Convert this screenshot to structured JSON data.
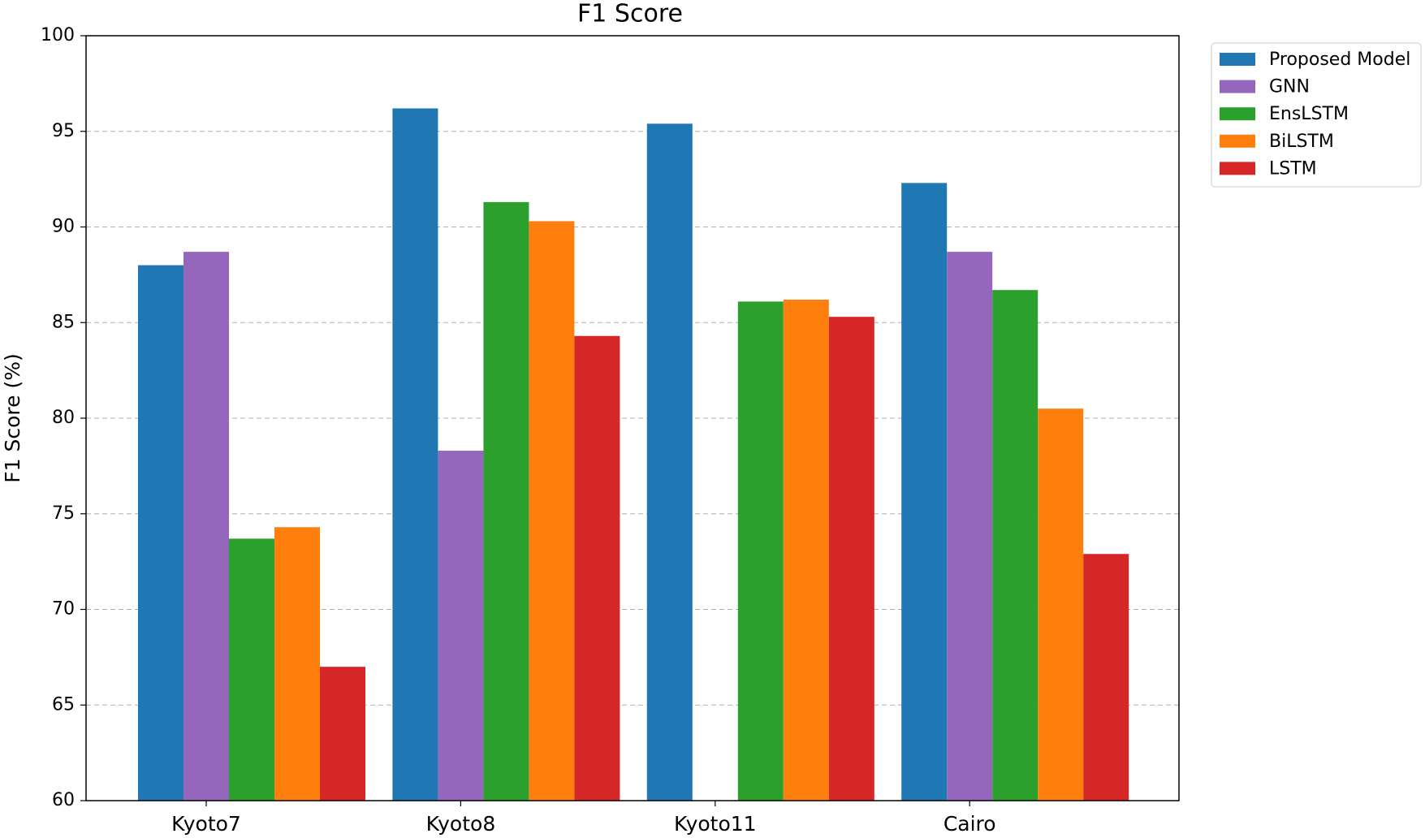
{
  "chart_data": {
    "type": "bar",
    "title": "F1 Score",
    "y_label": "F1 Score (%)",
    "categories": [
      "Kyoto7",
      "Kyoto8",
      "Kyoto11",
      "Cairo"
    ],
    "series": [
      {
        "name": "Proposed Model",
        "color": "#1f77b4",
        "values": [
          88.0,
          96.2,
          95.4,
          92.3
        ]
      },
      {
        "name": "GNN",
        "color": "#9467bd",
        "values": [
          88.7,
          78.3,
          null,
          88.7
        ]
      },
      {
        "name": "EnsLSTM",
        "color": "#2ca02c",
        "values": [
          73.7,
          91.3,
          86.1,
          86.7
        ]
      },
      {
        "name": "BiLSTM",
        "color": "#ff7f0e",
        "values": [
          74.3,
          90.3,
          86.2,
          80.5
        ]
      },
      {
        "name": "LSTM",
        "color": "#d62728",
        "values": [
          67.0,
          84.3,
          85.3,
          72.9
        ]
      }
    ],
    "ylim": [
      60,
      100
    ],
    "yticks": [
      60,
      65,
      70,
      75,
      80,
      85,
      90,
      95,
      100
    ],
    "grid": true,
    "legend": "outside-upper-right"
  }
}
